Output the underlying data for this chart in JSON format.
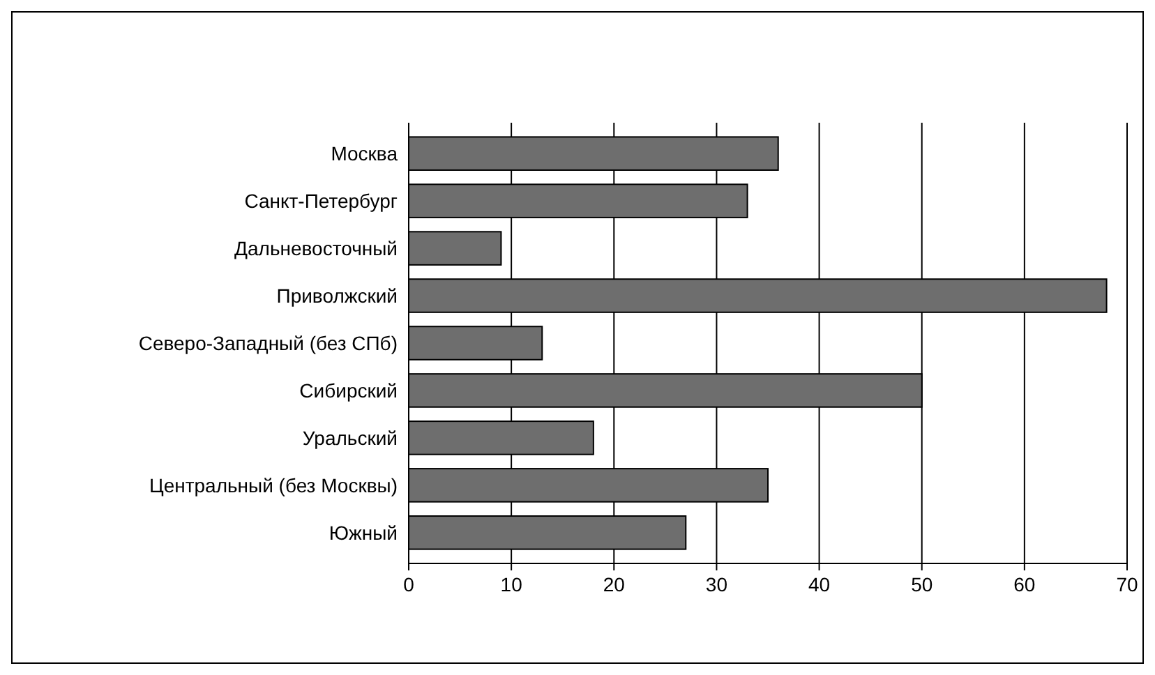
{
  "chart_data": {
    "type": "bar",
    "orientation": "horizontal",
    "categories": [
      "Москва",
      "Санкт-Петербург",
      "Дальневосточный",
      "Приволжский",
      "Северо-Западный (без СПб)",
      "Сибирский",
      "Уральский",
      "Центральный (без Москвы)",
      "Южный"
    ],
    "values": [
      36,
      33,
      9,
      68,
      13,
      50,
      18,
      35,
      27
    ],
    "color": "#6e6e6e",
    "xlim": [
      0,
      70
    ],
    "xticks": [
      0,
      10,
      20,
      30,
      40,
      50,
      60,
      70
    ],
    "grid": "x"
  }
}
